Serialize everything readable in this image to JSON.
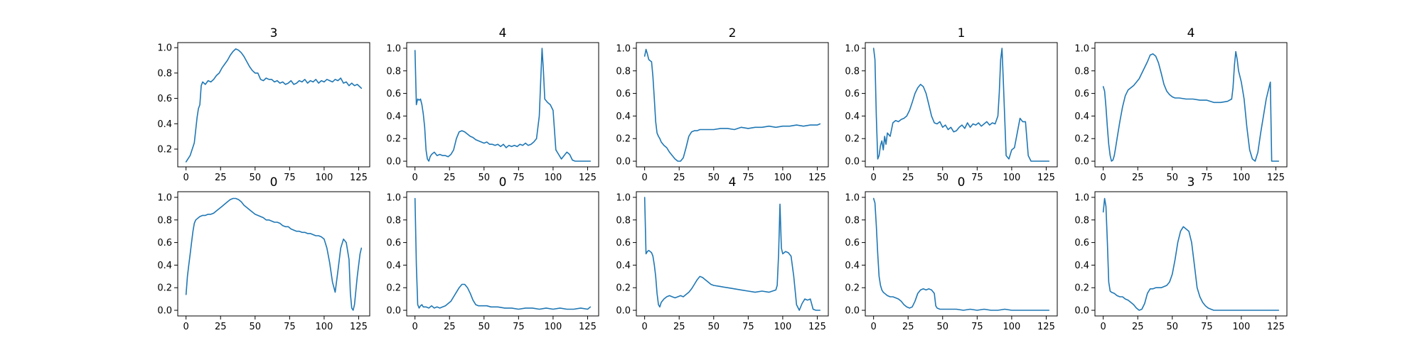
{
  "chart_data": [
    {
      "type": "line",
      "title": "3",
      "xlabel": "",
      "ylabel": "",
      "xlim": [
        -6,
        133
      ],
      "ylim": [
        0.06,
        1.04
      ],
      "xticks": [
        0,
        25,
        50,
        75,
        100,
        125
      ],
      "yticks": [
        0.2,
        0.4,
        0.6,
        0.8,
        1.0
      ],
      "x": [
        0,
        3,
        6,
        8,
        9,
        10,
        11,
        12,
        14,
        16,
        18,
        20,
        22,
        24,
        26,
        28,
        30,
        32,
        34,
        36,
        38,
        40,
        42,
        44,
        46,
        48,
        50,
        52,
        54,
        56,
        58,
        60,
        62,
        64,
        66,
        68,
        70,
        72,
        74,
        76,
        78,
        80,
        82,
        84,
        86,
        88,
        90,
        92,
        94,
        96,
        98,
        100,
        102,
        104,
        106,
        108,
        110,
        112,
        114,
        116,
        118,
        120,
        122,
        124,
        126,
        127
      ],
      "values": [
        0.1,
        0.15,
        0.25,
        0.45,
        0.52,
        0.55,
        0.7,
        0.73,
        0.71,
        0.74,
        0.73,
        0.75,
        0.78,
        0.8,
        0.84,
        0.87,
        0.9,
        0.94,
        0.97,
        0.99,
        0.98,
        0.96,
        0.93,
        0.89,
        0.85,
        0.82,
        0.8,
        0.8,
        0.75,
        0.74,
        0.76,
        0.75,
        0.75,
        0.73,
        0.74,
        0.72,
        0.73,
        0.71,
        0.72,
        0.74,
        0.71,
        0.72,
        0.74,
        0.73,
        0.75,
        0.72,
        0.74,
        0.73,
        0.75,
        0.72,
        0.74,
        0.73,
        0.75,
        0.74,
        0.73,
        0.75,
        0.74,
        0.76,
        0.72,
        0.73,
        0.7,
        0.72,
        0.7,
        0.71,
        0.69,
        0.68
      ]
    },
    {
      "type": "line",
      "title": "4",
      "xlabel": "",
      "ylabel": "",
      "xlim": [
        -6,
        133
      ],
      "ylim": [
        -0.05,
        1.05
      ],
      "xticks": [
        0,
        25,
        50,
        75,
        100,
        125
      ],
      "yticks": [
        0.0,
        0.2,
        0.4,
        0.6,
        0.8,
        1.0
      ],
      "x": [
        0,
        1,
        2,
        3,
        4,
        5,
        6,
        7,
        8,
        9,
        10,
        11,
        12,
        14,
        16,
        18,
        20,
        22,
        24,
        26,
        28,
        30,
        32,
        34,
        36,
        38,
        40,
        42,
        44,
        46,
        48,
        50,
        52,
        54,
        56,
        58,
        60,
        62,
        64,
        66,
        68,
        70,
        72,
        74,
        76,
        78,
        80,
        82,
        84,
        86,
        88,
        90,
        91,
        92,
        93,
        94,
        96,
        98,
        100,
        102,
        104,
        106,
        108,
        110,
        112,
        114,
        116,
        118,
        120,
        122,
        124,
        126,
        127
      ],
      "values": [
        0.98,
        0.5,
        0.55,
        0.54,
        0.55,
        0.5,
        0.42,
        0.3,
        0.1,
        0.02,
        0.0,
        0.04,
        0.06,
        0.08,
        0.05,
        0.06,
        0.05,
        0.05,
        0.04,
        0.06,
        0.1,
        0.2,
        0.26,
        0.27,
        0.26,
        0.24,
        0.22,
        0.21,
        0.19,
        0.18,
        0.17,
        0.16,
        0.17,
        0.15,
        0.15,
        0.14,
        0.15,
        0.13,
        0.15,
        0.12,
        0.14,
        0.13,
        0.14,
        0.13,
        0.15,
        0.14,
        0.16,
        0.14,
        0.15,
        0.17,
        0.2,
        0.4,
        0.7,
        1.0,
        0.8,
        0.55,
        0.52,
        0.5,
        0.45,
        0.1,
        0.06,
        0.02,
        0.05,
        0.08,
        0.06,
        0.01,
        0.0,
        0.0,
        0.0,
        0.0,
        0.0,
        0.0,
        0.0
      ]
    },
    {
      "type": "line",
      "title": "2",
      "xlabel": "",
      "ylabel": "",
      "xlim": [
        -6,
        133
      ],
      "ylim": [
        -0.05,
        1.05
      ],
      "xticks": [
        0,
        25,
        50,
        75,
        100,
        125
      ],
      "yticks": [
        0.0,
        0.2,
        0.4,
        0.6,
        0.8,
        1.0
      ],
      "x": [
        0,
        1,
        2,
        3,
        4,
        5,
        6,
        7,
        8,
        9,
        10,
        11,
        12,
        14,
        16,
        18,
        20,
        22,
        24,
        26,
        28,
        30,
        32,
        34,
        36,
        38,
        40,
        45,
        50,
        55,
        60,
        65,
        70,
        75,
        80,
        85,
        90,
        95,
        100,
        105,
        110,
        115,
        120,
        125,
        127
      ],
      "values": [
        0.93,
        0.99,
        0.95,
        0.9,
        0.89,
        0.88,
        0.75,
        0.55,
        0.35,
        0.25,
        0.22,
        0.2,
        0.17,
        0.14,
        0.12,
        0.08,
        0.05,
        0.02,
        0.0,
        0.0,
        0.03,
        0.12,
        0.22,
        0.26,
        0.27,
        0.27,
        0.28,
        0.28,
        0.28,
        0.29,
        0.29,
        0.28,
        0.3,
        0.29,
        0.3,
        0.3,
        0.31,
        0.3,
        0.31,
        0.31,
        0.32,
        0.31,
        0.32,
        0.32,
        0.33
      ]
    },
    {
      "type": "line",
      "title": "1",
      "xlabel": "",
      "ylabel": "",
      "xlim": [
        -6,
        133
      ],
      "ylim": [
        -0.05,
        1.05
      ],
      "xticks": [
        0,
        25,
        50,
        75,
        100,
        125
      ],
      "yticks": [
        0.0,
        0.2,
        0.4,
        0.6,
        0.8,
        1.0
      ],
      "x": [
        0,
        1,
        2,
        3,
        4,
        5,
        6,
        7,
        8,
        9,
        10,
        12,
        14,
        16,
        18,
        20,
        22,
        24,
        26,
        28,
        30,
        32,
        34,
        36,
        38,
        40,
        42,
        44,
        46,
        48,
        50,
        52,
        54,
        56,
        58,
        60,
        62,
        64,
        66,
        68,
        70,
        72,
        74,
        76,
        78,
        80,
        82,
        84,
        86,
        88,
        90,
        91,
        92,
        93,
        94,
        96,
        98,
        100,
        102,
        104,
        106,
        108,
        110,
        112,
        114,
        116,
        118,
        120,
        122,
        124,
        126,
        127
      ],
      "values": [
        1.0,
        0.9,
        0.4,
        0.02,
        0.05,
        0.14,
        0.18,
        0.1,
        0.22,
        0.15,
        0.25,
        0.22,
        0.34,
        0.36,
        0.35,
        0.37,
        0.38,
        0.4,
        0.45,
        0.52,
        0.6,
        0.65,
        0.68,
        0.66,
        0.6,
        0.5,
        0.4,
        0.34,
        0.33,
        0.35,
        0.3,
        0.32,
        0.28,
        0.3,
        0.26,
        0.27,
        0.3,
        0.32,
        0.29,
        0.34,
        0.3,
        0.33,
        0.32,
        0.34,
        0.31,
        0.33,
        0.35,
        0.32,
        0.34,
        0.33,
        0.4,
        0.6,
        0.9,
        1.0,
        0.7,
        0.05,
        0.02,
        0.1,
        0.12,
        0.25,
        0.38,
        0.35,
        0.35,
        0.05,
        0.0,
        0.0,
        0.0,
        0.0,
        0.0,
        0.0,
        0.0,
        0.0
      ]
    },
    {
      "type": "line",
      "title": "4",
      "xlabel": "",
      "ylabel": "",
      "xlim": [
        -6,
        133
      ],
      "ylim": [
        -0.05,
        1.05
      ],
      "xticks": [
        0,
        25,
        50,
        75,
        100,
        125
      ],
      "yticks": [
        0.0,
        0.2,
        0.4,
        0.6,
        0.8,
        1.0
      ],
      "x": [
        0,
        1,
        2,
        3,
        4,
        5,
        6,
        7,
        8,
        9,
        10,
        12,
        14,
        16,
        18,
        20,
        22,
        24,
        26,
        28,
        30,
        32,
        34,
        36,
        38,
        40,
        42,
        44,
        46,
        48,
        50,
        52,
        55,
        60,
        65,
        70,
        75,
        80,
        85,
        90,
        93,
        94,
        95,
        96,
        97,
        98,
        100,
        102,
        104,
        106,
        108,
        110,
        112,
        114,
        116,
        118,
        120,
        121,
        122,
        124,
        126,
        127
      ],
      "values": [
        0.66,
        0.62,
        0.48,
        0.3,
        0.15,
        0.05,
        0.0,
        0.01,
        0.05,
        0.12,
        0.2,
        0.35,
        0.48,
        0.58,
        0.63,
        0.65,
        0.67,
        0.7,
        0.73,
        0.78,
        0.83,
        0.88,
        0.94,
        0.95,
        0.93,
        0.87,
        0.78,
        0.68,
        0.62,
        0.59,
        0.57,
        0.56,
        0.56,
        0.55,
        0.55,
        0.54,
        0.54,
        0.52,
        0.52,
        0.53,
        0.55,
        0.65,
        0.85,
        0.97,
        0.9,
        0.8,
        0.7,
        0.55,
        0.3,
        0.1,
        0.02,
        0.0,
        0.08,
        0.25,
        0.4,
        0.55,
        0.65,
        0.7,
        0.0,
        0.0,
        0.0,
        0.0
      ]
    },
    {
      "type": "line",
      "title": "0",
      "xlabel": "",
      "ylabel": "",
      "xlim": [
        -6,
        133
      ],
      "ylim": [
        -0.05,
        1.05
      ],
      "xticks": [
        0,
        25,
        50,
        75,
        100,
        125
      ],
      "yticks": [
        0.0,
        0.2,
        0.4,
        0.6,
        0.8,
        1.0
      ],
      "x": [
        0,
        1,
        2,
        3,
        4,
        5,
        6,
        7,
        8,
        9,
        10,
        12,
        14,
        16,
        18,
        20,
        22,
        24,
        26,
        28,
        30,
        32,
        34,
        36,
        38,
        40,
        42,
        44,
        46,
        48,
        50,
        52,
        54,
        56,
        58,
        60,
        62,
        64,
        66,
        68,
        70,
        72,
        74,
        76,
        78,
        80,
        82,
        84,
        86,
        88,
        90,
        92,
        94,
        96,
        98,
        100,
        102,
        104,
        106,
        108,
        110,
        112,
        114,
        116,
        118,
        119,
        120,
        121,
        122,
        124,
        126,
        127
      ],
      "values": [
        0.14,
        0.3,
        0.4,
        0.5,
        0.6,
        0.7,
        0.77,
        0.8,
        0.81,
        0.82,
        0.83,
        0.84,
        0.84,
        0.85,
        0.85,
        0.86,
        0.88,
        0.9,
        0.92,
        0.94,
        0.96,
        0.98,
        0.99,
        0.99,
        0.98,
        0.96,
        0.93,
        0.91,
        0.89,
        0.87,
        0.85,
        0.84,
        0.83,
        0.82,
        0.8,
        0.8,
        0.79,
        0.78,
        0.78,
        0.77,
        0.75,
        0.74,
        0.74,
        0.72,
        0.71,
        0.7,
        0.7,
        0.69,
        0.69,
        0.68,
        0.68,
        0.67,
        0.66,
        0.66,
        0.65,
        0.63,
        0.55,
        0.42,
        0.25,
        0.16,
        0.35,
        0.55,
        0.63,
        0.6,
        0.45,
        0.15,
        0.02,
        0.0,
        0.05,
        0.3,
        0.5,
        0.55
      ]
    },
    {
      "type": "line",
      "title": "0",
      "xlabel": "",
      "ylabel": "",
      "xlim": [
        -6,
        133
      ],
      "ylim": [
        -0.05,
        1.05
      ],
      "xticks": [
        0,
        25,
        50,
        75,
        100,
        125
      ],
      "yticks": [
        0.0,
        0.2,
        0.4,
        0.6,
        0.8,
        1.0
      ],
      "x": [
        0,
        1,
        2,
        3,
        4,
        5,
        6,
        8,
        10,
        12,
        14,
        16,
        18,
        20,
        22,
        24,
        26,
        28,
        30,
        32,
        34,
        36,
        38,
        40,
        42,
        44,
        46,
        48,
        50,
        52,
        55,
        60,
        65,
        70,
        75,
        80,
        85,
        90,
        95,
        100,
        105,
        110,
        115,
        120,
        125,
        127
      ],
      "values": [
        0.99,
        0.4,
        0.05,
        0.02,
        0.04,
        0.05,
        0.03,
        0.03,
        0.02,
        0.04,
        0.02,
        0.03,
        0.02,
        0.03,
        0.04,
        0.06,
        0.08,
        0.12,
        0.16,
        0.2,
        0.23,
        0.23,
        0.2,
        0.15,
        0.09,
        0.05,
        0.04,
        0.04,
        0.04,
        0.04,
        0.03,
        0.03,
        0.02,
        0.02,
        0.01,
        0.02,
        0.02,
        0.01,
        0.02,
        0.01,
        0.02,
        0.01,
        0.01,
        0.02,
        0.01,
        0.03
      ]
    },
    {
      "type": "line",
      "title": "4",
      "xlabel": "",
      "ylabel": "",
      "xlim": [
        -6,
        133
      ],
      "ylim": [
        -0.05,
        1.05
      ],
      "xticks": [
        0,
        25,
        50,
        75,
        100,
        125
      ],
      "yticks": [
        0.0,
        0.2,
        0.4,
        0.6,
        0.8,
        1.0
      ],
      "x": [
        0,
        1,
        2,
        3,
        4,
        5,
        6,
        7,
        8,
        9,
        10,
        11,
        12,
        14,
        16,
        18,
        20,
        22,
        24,
        26,
        28,
        30,
        32,
        34,
        36,
        38,
        40,
        42,
        44,
        46,
        48,
        50,
        55,
        60,
        65,
        70,
        75,
        80,
        85,
        90,
        95,
        96,
        97,
        98,
        99,
        100,
        102,
        104,
        106,
        108,
        110,
        112,
        114,
        116,
        118,
        120,
        122,
        124,
        126,
        127
      ],
      "values": [
        1.0,
        0.5,
        0.52,
        0.53,
        0.52,
        0.51,
        0.48,
        0.4,
        0.3,
        0.15,
        0.05,
        0.03,
        0.07,
        0.1,
        0.12,
        0.13,
        0.12,
        0.11,
        0.12,
        0.13,
        0.12,
        0.14,
        0.16,
        0.19,
        0.23,
        0.27,
        0.3,
        0.29,
        0.27,
        0.25,
        0.23,
        0.22,
        0.21,
        0.2,
        0.19,
        0.18,
        0.17,
        0.16,
        0.17,
        0.16,
        0.18,
        0.22,
        0.5,
        0.94,
        0.55,
        0.5,
        0.52,
        0.51,
        0.48,
        0.3,
        0.05,
        0.0,
        0.06,
        0.1,
        0.09,
        0.1,
        0.01,
        0.0,
        0.0,
        0.0
      ]
    },
    {
      "type": "line",
      "title": "0",
      "xlabel": "",
      "ylabel": "",
      "xlim": [
        -6,
        133
      ],
      "ylim": [
        -0.05,
        1.05
      ],
      "xticks": [
        0,
        25,
        50,
        75,
        100,
        125
      ],
      "yticks": [
        0.0,
        0.2,
        0.4,
        0.6,
        0.8,
        1.0
      ],
      "x": [
        0,
        1,
        2,
        3,
        4,
        5,
        6,
        7,
        8,
        10,
        12,
        14,
        16,
        18,
        20,
        22,
        24,
        26,
        28,
        30,
        32,
        34,
        36,
        38,
        40,
        42,
        44,
        45,
        46,
        48,
        50,
        55,
        60,
        65,
        70,
        75,
        80,
        85,
        90,
        95,
        100,
        105,
        110,
        115,
        120,
        125,
        127
      ],
      "values": [
        0.99,
        0.95,
        0.75,
        0.5,
        0.3,
        0.22,
        0.18,
        0.16,
        0.15,
        0.13,
        0.12,
        0.12,
        0.11,
        0.1,
        0.08,
        0.05,
        0.03,
        0.02,
        0.03,
        0.08,
        0.15,
        0.18,
        0.19,
        0.18,
        0.19,
        0.18,
        0.15,
        0.04,
        0.02,
        0.01,
        0.01,
        0.01,
        0.01,
        0.0,
        0.01,
        0.0,
        0.01,
        0.0,
        0.0,
        0.01,
        0.0,
        0.0,
        0.0,
        0.0,
        0.0,
        0.0,
        0.0
      ]
    },
    {
      "type": "line",
      "title": "3",
      "xlabel": "",
      "ylabel": "",
      "xlim": [
        -6,
        133
      ],
      "ylim": [
        -0.05,
        1.05
      ],
      "xticks": [
        0,
        25,
        50,
        75,
        100,
        125
      ],
      "yticks": [
        0.0,
        0.2,
        0.4,
        0.6,
        0.8,
        1.0
      ],
      "x": [
        0,
        1,
        2,
        3,
        4,
        5,
        6,
        8,
        10,
        12,
        14,
        16,
        18,
        20,
        22,
        24,
        26,
        28,
        30,
        32,
        34,
        36,
        38,
        40,
        42,
        44,
        46,
        48,
        50,
        52,
        54,
        56,
        58,
        60,
        62,
        64,
        66,
        68,
        70,
        72,
        74,
        76,
        78,
        80,
        85,
        90,
        95,
        100,
        105,
        110,
        115,
        120,
        125,
        127
      ],
      "values": [
        0.87,
        0.99,
        0.92,
        0.6,
        0.25,
        0.17,
        0.16,
        0.15,
        0.13,
        0.12,
        0.12,
        0.1,
        0.09,
        0.07,
        0.05,
        0.02,
        0.0,
        0.01,
        0.06,
        0.15,
        0.19,
        0.19,
        0.2,
        0.2,
        0.2,
        0.21,
        0.22,
        0.25,
        0.32,
        0.45,
        0.6,
        0.7,
        0.74,
        0.72,
        0.7,
        0.6,
        0.4,
        0.2,
        0.12,
        0.07,
        0.04,
        0.02,
        0.01,
        0.0,
        0.0,
        0.0,
        0.0,
        0.0,
        0.0,
        0.0,
        0.0,
        0.0,
        0.0,
        0.0
      ]
    }
  ]
}
